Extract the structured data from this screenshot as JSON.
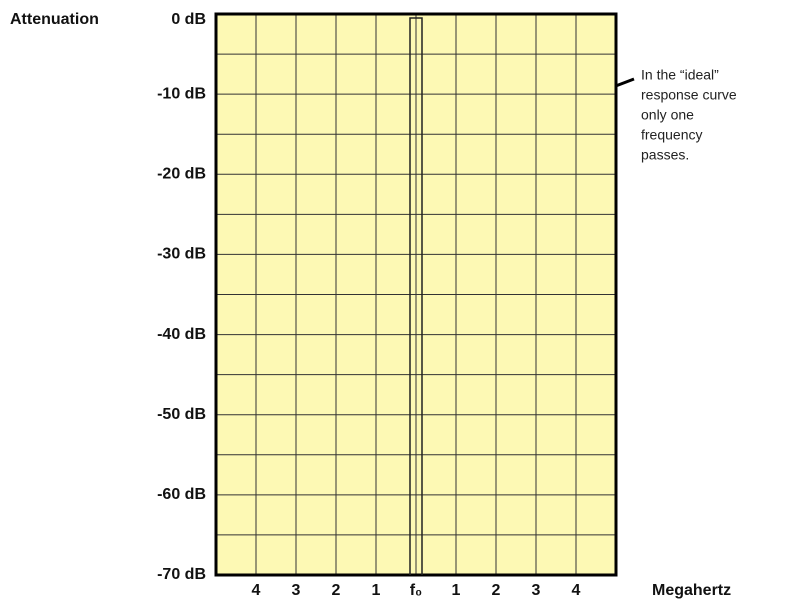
{
  "chart_data": {
    "type": "line",
    "y_label": "Attenuation",
    "x_label": "Megahertz",
    "xlim": [
      -5,
      5
    ],
    "ylim": [
      -70,
      0
    ],
    "xticks": [
      {
        "value": -4,
        "label": "4"
      },
      {
        "value": -3,
        "label": "3"
      },
      {
        "value": -2,
        "label": "2"
      },
      {
        "value": -1,
        "label": "1"
      },
      {
        "value": 0,
        "label": "f₀"
      },
      1,
      2,
      3,
      4
    ],
    "yticks": [
      {
        "value": -70,
        "label": "-70 dB"
      },
      {
        "value": -60,
        "label": "-60 dB"
      },
      {
        "value": -50,
        "label": "-50 dB"
      },
      {
        "value": -40,
        "label": "-40 dB"
      },
      {
        "value": -30,
        "label": "-30 dB"
      },
      {
        "value": -20,
        "label": "-20 dB"
      },
      {
        "value": -10,
        "label": "-10 dB"
      },
      {
        "value": 0,
        "label": "0 dB"
      }
    ],
    "x_grid": [
      -5,
      -4,
      -3,
      -2,
      -1,
      0,
      1,
      2,
      3,
      4,
      5
    ],
    "y_grid": [
      -70,
      -65,
      -60,
      -55,
      -50,
      -45,
      -40,
      -35,
      -30,
      -25,
      -20,
      -15,
      -10,
      -5,
      0
    ],
    "grid": true,
    "background": "#fdf9b4",
    "series": [
      {
        "color": "#222222",
        "x": [
          -0.15,
          -0.15,
          0.15,
          0.15
        ],
        "values": [
          -70,
          -0.5,
          -0.5,
          -70
        ]
      }
    ],
    "annotation": [
      "In the “ideal”",
      "response curve",
      "only one",
      "frequency",
      "passes."
    ]
  }
}
